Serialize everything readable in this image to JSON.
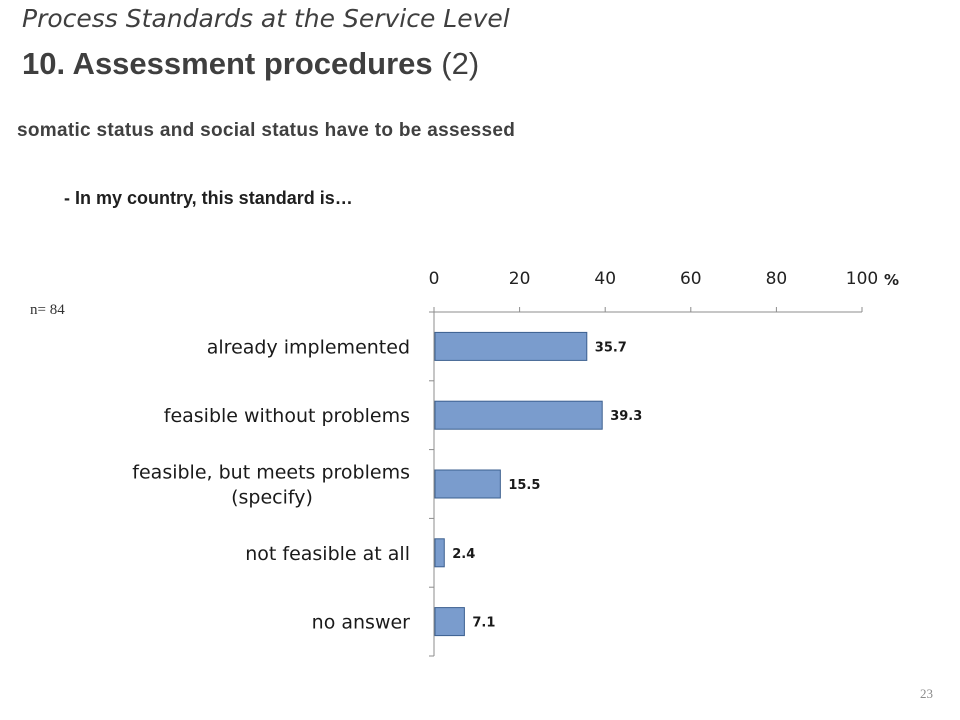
{
  "slide": {
    "title_line1": "Process Standards at the Service Level",
    "title_line2_bold": "10. Assessment procedures",
    "title_line2_rest": "(2)",
    "subtitle": "somatic status and social status have to be assessed",
    "question": "- In my country, this standard is…",
    "sample_size": "n= 84",
    "page_number": "23"
  },
  "chart_data": {
    "type": "bar",
    "orientation": "horizontal",
    "categories": [
      [
        "already implemented"
      ],
      [
        "feasible without problems"
      ],
      [
        "feasible, but meets problems",
        "(specify)"
      ],
      [
        "not feasible at all"
      ],
      [
        "no answer"
      ]
    ],
    "values": [
      35.7,
      39.3,
      15.5,
      2.4,
      7.1
    ],
    "data_labels": [
      "35.7",
      "39.3",
      "15.5",
      "2.4",
      "7.1"
    ],
    "ticks": [
      0,
      20,
      40,
      60,
      80,
      100
    ],
    "xlim": [
      0,
      100
    ],
    "unit_label": "%",
    "axis_position": "top",
    "bar_color": "#7a9ccd",
    "bar_edge_color": "#3b5f8f",
    "grid": false
  }
}
